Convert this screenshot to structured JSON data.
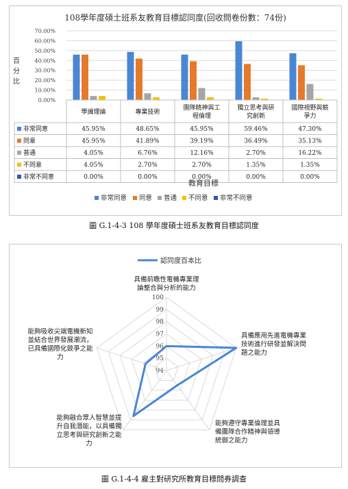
{
  "figure1": {
    "caption": "圖 G.1-4-3 108 學年度碩士班系友教育目標認同度",
    "chart_data": {
      "type": "bar",
      "title": "108學年度碩士班系友教育目標認同度(回收問卷份數：74份)",
      "ylabel": "百分比",
      "xlabel": "教育目標",
      "ylim": [
        0,
        70
      ],
      "yticks": [
        "0.00%",
        "10.00%",
        "20.00%",
        "30.00%",
        "40.00%",
        "50.00%",
        "60.00%",
        "70.00%"
      ],
      "legend_position": "bottom",
      "grid": true,
      "categories": [
        [
          "學識理論"
        ],
        [
          "專業技術"
        ],
        [
          "團隊精神與工",
          "程倫理"
        ],
        [
          "獨立思考與研",
          "究創新"
        ],
        [
          "國際視野與競",
          "爭力"
        ]
      ],
      "series": [
        {
          "name": "非常同意",
          "color": "#4a86d4",
          "values": [
            45.95,
            48.65,
            45.95,
            59.46,
            47.3
          ],
          "labels": [
            "45.95%",
            "48.65%",
            "45.95%",
            "59.46%",
            "47.30%"
          ]
        },
        {
          "name": "同意",
          "color": "#e67a2b",
          "values": [
            45.95,
            41.89,
            39.19,
            36.49,
            35.13
          ],
          "labels": [
            "45.95%",
            "41.89%",
            "39.19%",
            "36.49%",
            "35.13%"
          ]
        },
        {
          "name": "普通",
          "color": "#a5a5a5",
          "values": [
            4.05,
            6.76,
            12.16,
            2.7,
            16.22
          ],
          "labels": [
            "4.05%",
            "6.76%",
            "12.16%",
            "2.70%",
            "16.22%"
          ]
        },
        {
          "name": "不同意",
          "color": "#f5c000",
          "values": [
            4.05,
            2.7,
            2.7,
            1.35,
            1.35
          ],
          "labels": [
            "4.05%",
            "2.70%",
            "2.70%",
            "1.35%",
            "1.35%"
          ]
        },
        {
          "name": "非常不同意",
          "color": "#2e5ba8",
          "values": [
            0.0,
            0.0,
            0.0,
            0.0,
            0.0
          ],
          "labels": [
            "0.00%",
            "0.00%",
            "0.00%",
            "0.00%",
            "0.00%"
          ]
        }
      ]
    }
  },
  "figure2": {
    "caption": "圖 G.1-4-4  雇主對研究所教育目標問券調查",
    "chart_data": {
      "type": "radar",
      "legend": "認同度百本比",
      "legend_position": "top",
      "color": "#4a86d4",
      "rlim": [
        94,
        100
      ],
      "rticks": [
        "94",
        "95",
        "96",
        "97",
        "98",
        "99",
        "100"
      ],
      "axes": [
        [
          "具備前瞻性電機專業理",
          "論整合與分析的能力"
        ],
        [
          "具備應用先進電機專業",
          "技術進行研發並解決問",
          "題之能力"
        ],
        [
          "能夠遵守專業倫理並具",
          "備團隊合作精神與領導",
          "統御之能力"
        ],
        [
          "能夠融合眾人智慧並提",
          "升自我潛能，以具備獨",
          "立思考與研究創新之能",
          "力"
        ],
        [
          "能夠吸收尖端電機新知",
          "並結合世界發展潮流，",
          "已具備國際化競爭之能",
          "力"
        ]
      ],
      "values": [
        96,
        100,
        95.5,
        98.6,
        95.8
      ]
    }
  }
}
